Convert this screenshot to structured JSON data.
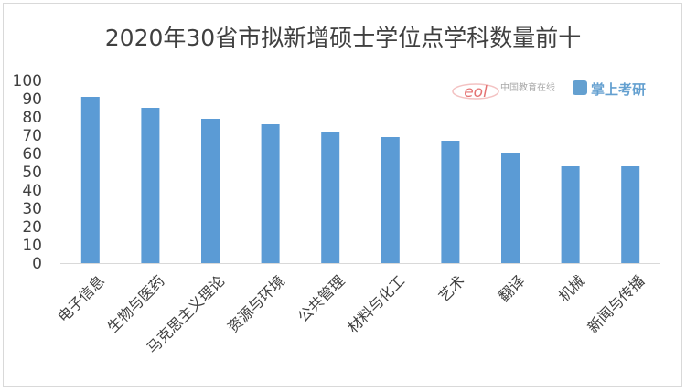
{
  "chart_data": {
    "type": "bar",
    "title": "2020年30省市拟新增硕士学位点学科数量前十",
    "categories": [
      "电子信息",
      "生物与医药",
      "马克思主义理论",
      "资源与环境",
      "公共管理",
      "材料与化工",
      "艺术",
      "翻译",
      "机械",
      "新闻与传播"
    ],
    "values": [
      91,
      85,
      79,
      76,
      72,
      69,
      67,
      60,
      53,
      53
    ],
    "ylim": [
      0,
      100
    ],
    "yticks": [
      0,
      10,
      20,
      30,
      40,
      50,
      60,
      70,
      80,
      90,
      100
    ],
    "xlabel": "",
    "ylabel": "",
    "grid": false,
    "legend": "none",
    "bar_color": "#5b9bd5",
    "axis_color": "#d9d9d9",
    "text_color": "#404040"
  },
  "watermark": {
    "logo_text": "eol",
    "site_name": "中国教育在线",
    "brand_name": "掌上考研"
  }
}
